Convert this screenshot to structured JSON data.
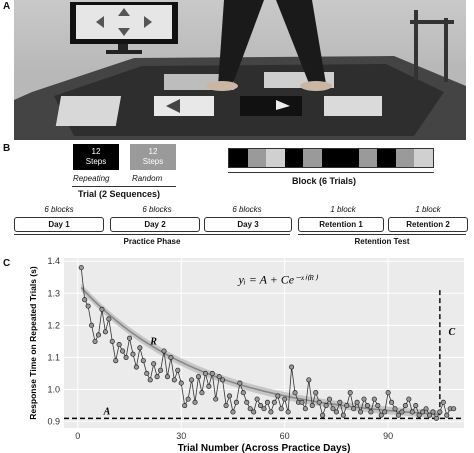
{
  "panel_letters": {
    "a": "A",
    "b": "B",
    "c": "C"
  },
  "panel_b": {
    "repeating_box": {
      "value": "12",
      "unit": "Steps",
      "caption": "Repeating"
    },
    "random_box": {
      "value": "12",
      "unit": "Steps",
      "caption": "Random"
    },
    "trial_label": "Trial (2 Sequences)",
    "block_label": "Block (6 Trials)",
    "block_pattern": [
      "#000000",
      "#9a9a9a",
      "#d0d0d0",
      "#000000",
      "#9a9a9a",
      "#000000",
      "#000000",
      "#9a9a9a",
      "#000000",
      "#9a9a9a",
      "#d0d0d0"
    ],
    "days": [
      {
        "count": "6 blocks",
        "label": "Day 1"
      },
      {
        "count": "6 blocks",
        "label": "Day 2"
      },
      {
        "count": "6 blocks",
        "label": "Day 3"
      },
      {
        "count": "1 block",
        "label": "Retention 1"
      },
      {
        "count": "1 block",
        "label": "Retention 2"
      }
    ],
    "practice_phase_label": "Practice Phase",
    "retention_test_label": "Retention Test"
  },
  "chart_data": {
    "type": "scatter",
    "xlabel": "Trial Number (Across Practice Days)",
    "ylabel": "Response Time on Repeated Trials (s)",
    "xlim": [
      -4,
      112
    ],
    "ylim": [
      0.88,
      1.41
    ],
    "xticks": [
      0,
      30,
      60,
      90
    ],
    "yticks": [
      0.9,
      1.0,
      1.1,
      1.2,
      1.3,
      1.4
    ],
    "ytick_labels": [
      "0.9",
      "1.0",
      "1.1",
      "1.2",
      "1.3",
      "1.4"
    ],
    "grid": true,
    "background": "#ebebeb",
    "equation": "yᵢ = A + Ce⁻ˣⁱ⁽ᴿ⁾",
    "annotations": {
      "A": "A",
      "R": "R",
      "C": "C"
    },
    "asymptote_A": 0.91,
    "dashed_vertical_x": 105,
    "dashed_vertical_top": 1.31,
    "fit": {
      "A": 0.9,
      "C": 0.43,
      "R": 0.028
    },
    "points": [
      [
        1,
        1.38
      ],
      [
        2,
        1.28
      ],
      [
        3,
        1.26
      ],
      [
        4,
        1.2
      ],
      [
        5,
        1.15
      ],
      [
        6,
        1.17
      ],
      [
        7,
        1.25
      ],
      [
        8,
        1.18
      ],
      [
        9,
        1.22
      ],
      [
        10,
        1.15
      ],
      [
        11,
        1.09
      ],
      [
        12,
        1.14
      ],
      [
        13,
        1.12
      ],
      [
        14,
        1.1
      ],
      [
        15,
        1.16
      ],
      [
        16,
        1.11
      ],
      [
        17,
        1.07
      ],
      [
        18,
        1.13
      ],
      [
        19,
        1.09
      ],
      [
        20,
        1.05
      ],
      [
        21,
        1.03
      ],
      [
        22,
        1.08
      ],
      [
        23,
        1.04
      ],
      [
        24,
        1.06
      ],
      [
        25,
        1.12
      ],
      [
        26,
        1.04
      ],
      [
        27,
        1.1
      ],
      [
        28,
        1.03
      ],
      [
        29,
        1.06
      ],
      [
        30,
        1.02
      ],
      [
        31,
        0.95
      ],
      [
        32,
        0.97
      ],
      [
        33,
        1.03
      ],
      [
        34,
        0.96
      ],
      [
        35,
        1.04
      ],
      [
        36,
        0.99
      ],
      [
        37,
        1.05
      ],
      [
        38,
        1.01
      ],
      [
        39,
        1.05
      ],
      [
        40,
        0.97
      ],
      [
        41,
        1.04
      ],
      [
        42,
        1.03
      ],
      [
        43,
        0.95
      ],
      [
        44,
        0.98
      ],
      [
        45,
        0.93
      ],
      [
        46,
        0.96
      ],
      [
        47,
        1.02
      ],
      [
        48,
        0.99
      ],
      [
        49,
        0.96
      ],
      [
        50,
        0.94
      ],
      [
        51,
        0.93
      ],
      [
        52,
        0.97
      ],
      [
        53,
        0.95
      ],
      [
        54,
        0.94
      ],
      [
        55,
        0.96
      ],
      [
        56,
        0.93
      ],
      [
        57,
        0.96
      ],
      [
        58,
        0.98
      ],
      [
        59,
        0.94
      ],
      [
        60,
        0.97
      ],
      [
        61,
        0.93
      ],
      [
        62,
        1.07
      ],
      [
        63,
        0.99
      ],
      [
        64,
        0.96
      ],
      [
        65,
        0.96
      ],
      [
        66,
        0.94
      ],
      [
        67,
        1.03
      ],
      [
        68,
        0.95
      ],
      [
        69,
        0.99
      ],
      [
        70,
        0.96
      ],
      [
        71,
        0.92
      ],
      [
        72,
        0.95
      ],
      [
        73,
        0.97
      ],
      [
        74,
        0.94
      ],
      [
        75,
        0.93
      ],
      [
        76,
        0.96
      ],
      [
        77,
        0.92
      ],
      [
        78,
        0.95
      ],
      [
        79,
        0.99
      ],
      [
        80,
        0.94
      ],
      [
        81,
        0.96
      ],
      [
        82,
        0.93
      ],
      [
        83,
        0.97
      ],
      [
        84,
        0.95
      ],
      [
        85,
        0.93
      ],
      [
        86,
        0.97
      ],
      [
        87,
        0.95
      ],
      [
        88,
        0.92
      ],
      [
        89,
        0.93
      ],
      [
        90,
        0.99
      ],
      [
        91,
        0.96
      ],
      [
        92,
        0.94
      ],
      [
        93,
        0.92
      ],
      [
        94,
        0.93
      ],
      [
        95,
        0.95
      ],
      [
        96,
        0.97
      ],
      [
        97,
        0.93
      ],
      [
        98,
        0.95
      ],
      [
        99,
        0.92
      ],
      [
        100,
        0.93
      ],
      [
        101,
        0.94
      ],
      [
        102,
        0.92
      ],
      [
        103,
        0.93
      ],
      [
        104,
        0.91
      ],
      [
        105,
        0.93
      ],
      [
        106,
        0.96
      ],
      [
        107,
        0.92
      ],
      [
        108,
        0.94
      ],
      [
        109,
        0.94
      ]
    ]
  }
}
